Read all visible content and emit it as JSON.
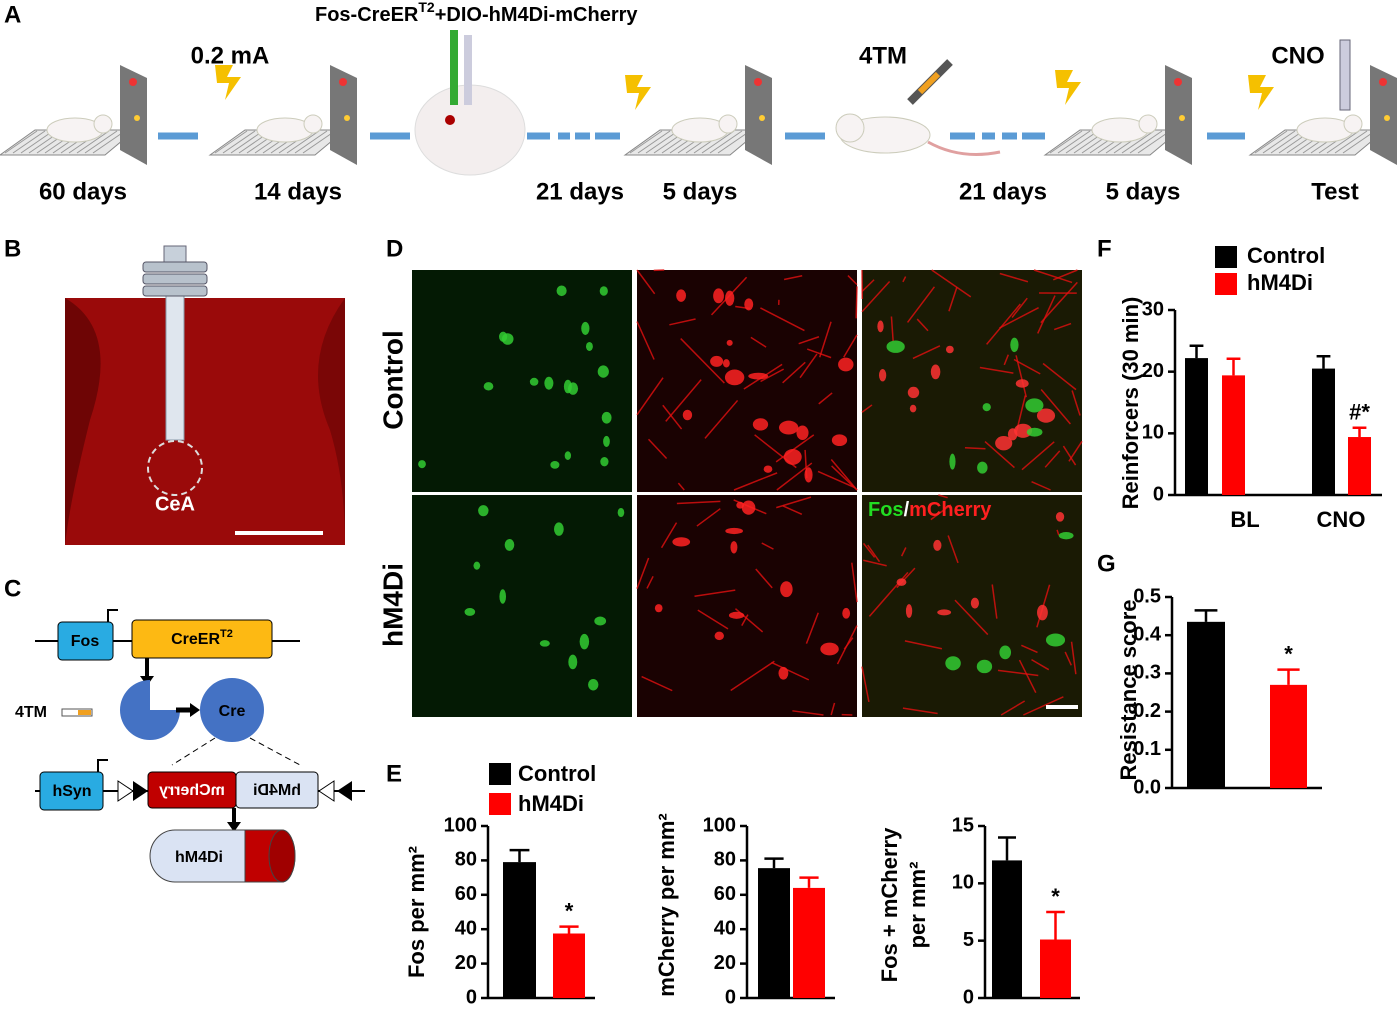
{
  "panel_a": {
    "label": "A",
    "construct": [
      "Fos-CreER",
      "T2",
      "+DIO-hM4Di-mCherry"
    ],
    "shock": "0.2 mA",
    "tamoxifen": "4TM",
    "drug": "CNO",
    "timeline": [
      "60 days",
      "14 days",
      "21 days",
      "5 days",
      "21 days",
      "5 days",
      "Test"
    ]
  },
  "panel_b": {
    "label": "B",
    "region": "CeA"
  },
  "panel_c": {
    "label": "C",
    "fos": "Fos",
    "creer": [
      "CreER",
      "T2"
    ],
    "tamoxifen": "4TM",
    "cre": "Cre",
    "hsyn": "hSyn",
    "mcherry": "mCherry",
    "hm4di_gene": "hM4Di",
    "hm4di_receptor": "hM4Di"
  },
  "panel_d": {
    "label": "D",
    "rows": [
      "Control",
      "hM4Di"
    ],
    "overlay": [
      "Fos",
      "/",
      "mCherry"
    ]
  },
  "panel_e": {
    "label": "E",
    "legend": [
      {
        "name": "Control",
        "color": "#000000"
      },
      {
        "name": "hM4Di",
        "color": "#ff0000"
      }
    ]
  },
  "panel_f": {
    "label": "F"
  },
  "panel_g": {
    "label": "G"
  },
  "chart_data": [
    {
      "type": "bar",
      "ylabel": "Fos per mm²",
      "values": [
        79,
        37.5
      ],
      "errors": [
        7,
        4
      ],
      "annotations": [
        null,
        "*"
      ],
      "colors": [
        "#000000",
        "#ff0000"
      ],
      "ylim": [
        0,
        100
      ],
      "yticks": [
        0,
        20,
        40,
        60,
        80,
        100
      ]
    },
    {
      "type": "bar",
      "ylabel": "mCherry per mm²",
      "values": [
        75.5,
        64
      ],
      "errors": [
        5.5,
        6
      ],
      "colors": [
        "#000000",
        "#ff0000"
      ],
      "ylim": [
        0,
        100
      ],
      "yticks": [
        0,
        20,
        40,
        60,
        80,
        100
      ]
    },
    {
      "type": "bar",
      "ylabel": [
        "Fos + mCherry",
        "per mm²"
      ],
      "values": [
        12,
        5.1
      ],
      "errors": [
        2,
        2.4
      ],
      "annotations": [
        null,
        "*"
      ],
      "colors": [
        "#000000",
        "#ff0000"
      ],
      "ylim": [
        0,
        15
      ],
      "yticks": [
        0,
        5,
        10,
        15
      ]
    },
    {
      "type": "grouped_bar",
      "ylabel": "Reinforcers (30 min)",
      "categories": [
        "BL",
        "CNO"
      ],
      "series": [
        {
          "name": "Control",
          "color": "#000000",
          "values": [
            22.2,
            20.5
          ],
          "errors": [
            2,
            2
          ]
        },
        {
          "name": "hM4Di",
          "color": "#ff0000",
          "values": [
            19.4,
            9.4
          ],
          "errors": [
            2.7,
            1.5
          ],
          "annotations": [
            null,
            "#*"
          ]
        }
      ],
      "ylim": [
        0,
        30
      ],
      "yticks": [
        0,
        10,
        20,
        30
      ]
    },
    {
      "type": "bar",
      "ylabel": "Resistance score",
      "values": [
        0.435,
        0.27
      ],
      "errors": [
        0.03,
        0.04
      ],
      "annotations": [
        null,
        "*"
      ],
      "colors": [
        "#000000",
        "#ff0000"
      ],
      "ylim": [
        0,
        0.5
      ],
      "yticks": [
        {
          "value": 0,
          "label": "0.0"
        },
        0.1,
        0.2,
        0.3,
        0.4,
        0.5
      ]
    }
  ]
}
